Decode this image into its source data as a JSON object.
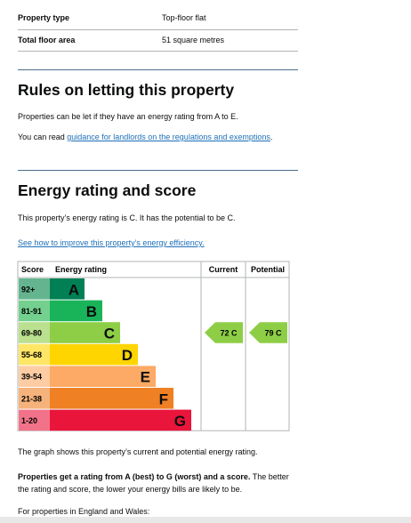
{
  "summary": {
    "rows": [
      [
        "Property type",
        "Top-floor flat"
      ],
      [
        "Total floor area",
        "51 square metres"
      ]
    ]
  },
  "letting": {
    "title": "Rules on letting this property",
    "para1": "Properties can be let if they have an energy rating from A to E.",
    "para2_prefix": "You can read ",
    "para2_link": "guidance for landlords on the regulations and exemptions",
    "para2_suffix": "."
  },
  "rating": {
    "title": "Energy rating and score",
    "para1": "This property’s energy rating is C. It has the potential to be C.",
    "link": "See how to improve this property’s energy efficiency.",
    "graph": {
      "headers": [
        "Score",
        "Energy rating",
        "Current",
        "Potential"
      ],
      "bands": [
        {
          "score": "92+",
          "letter": "A",
          "color": "#008054",
          "tint": "#64b58f"
        },
        {
          "score": "81-91",
          "letter": "B",
          "color": "#19b459",
          "tint": "#73d08f"
        },
        {
          "score": "69-80",
          "letter": "C",
          "color": "#8dce46",
          "tint": "#bbe08f"
        },
        {
          "score": "55-68",
          "letter": "D",
          "color": "#ffd500",
          "tint": "#ffe666"
        },
        {
          "score": "39-54",
          "letter": "E",
          "color": "#fcaa65",
          "tint": "#fdcca3"
        },
        {
          "score": "21-38",
          "letter": "F",
          "color": "#ef8023",
          "tint": "#f5b37b"
        },
        {
          "score": "1-20",
          "letter": "G",
          "color": "#e9153b",
          "tint": "#f27389"
        }
      ],
      "current": "72 C",
      "potential": "79 C"
    },
    "after": "The graph shows this property’s current and potential energy rating.",
    "bold": "Properties get a rating from A (best) to G (worst) and a score.",
    "rest": " The better the rating and score, the lower your energy bills are likely to be.",
    "last": "For properties in England and Wales:"
  }
}
